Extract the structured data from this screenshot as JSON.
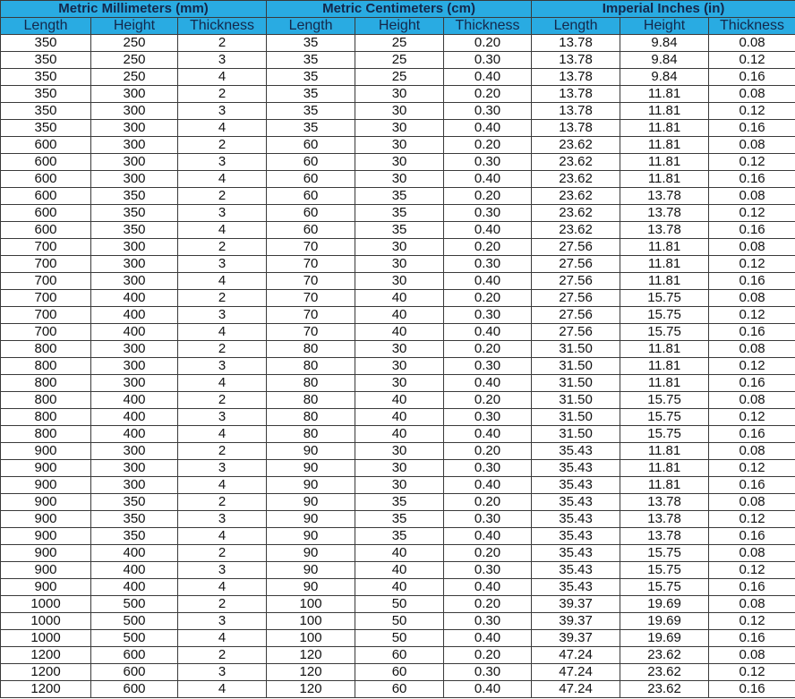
{
  "colors": {
    "header_bg": "#29abe2",
    "header_text": "#14284b",
    "border": "#3a3a3a"
  },
  "groups": [
    "Metric Millimeters (mm)",
    "Metric Centimeters (cm)",
    "Imperial Inches (in)"
  ],
  "columns": [
    "Length",
    "Height",
    "Thickness",
    "Length",
    "Height",
    "Thickness",
    "Length",
    "Height",
    "Thickness"
  ],
  "rows": [
    [
      "350",
      "250",
      "2",
      "35",
      "25",
      "0.20",
      "13.78",
      "9.84",
      "0.08"
    ],
    [
      "350",
      "250",
      "3",
      "35",
      "25",
      "0.30",
      "13.78",
      "9.84",
      "0.12"
    ],
    [
      "350",
      "250",
      "4",
      "35",
      "25",
      "0.40",
      "13.78",
      "9.84",
      "0.16"
    ],
    [
      "350",
      "300",
      "2",
      "35",
      "30",
      "0.20",
      "13.78",
      "11.81",
      "0.08"
    ],
    [
      "350",
      "300",
      "3",
      "35",
      "30",
      "0.30",
      "13.78",
      "11.81",
      "0.12"
    ],
    [
      "350",
      "300",
      "4",
      "35",
      "30",
      "0.40",
      "13.78",
      "11.81",
      "0.16"
    ],
    [
      "600",
      "300",
      "2",
      "60",
      "30",
      "0.20",
      "23.62",
      "11.81",
      "0.08"
    ],
    [
      "600",
      "300",
      "3",
      "60",
      "30",
      "0.30",
      "23.62",
      "11.81",
      "0.12"
    ],
    [
      "600",
      "300",
      "4",
      "60",
      "30",
      "0.40",
      "23.62",
      "11.81",
      "0.16"
    ],
    [
      "600",
      "350",
      "2",
      "60",
      "35",
      "0.20",
      "23.62",
      "13.78",
      "0.08"
    ],
    [
      "600",
      "350",
      "3",
      "60",
      "35",
      "0.30",
      "23.62",
      "13.78",
      "0.12"
    ],
    [
      "600",
      "350",
      "4",
      "60",
      "35",
      "0.40",
      "23.62",
      "13.78",
      "0.16"
    ],
    [
      "700",
      "300",
      "2",
      "70",
      "30",
      "0.20",
      "27.56",
      "11.81",
      "0.08"
    ],
    [
      "700",
      "300",
      "3",
      "70",
      "30",
      "0.30",
      "27.56",
      "11.81",
      "0.12"
    ],
    [
      "700",
      "300",
      "4",
      "70",
      "30",
      "0.40",
      "27.56",
      "11.81",
      "0.16"
    ],
    [
      "700",
      "400",
      "2",
      "70",
      "40",
      "0.20",
      "27.56",
      "15.75",
      "0.08"
    ],
    [
      "700",
      "400",
      "3",
      "70",
      "40",
      "0.30",
      "27.56",
      "15.75",
      "0.12"
    ],
    [
      "700",
      "400",
      "4",
      "70",
      "40",
      "0.40",
      "27.56",
      "15.75",
      "0.16"
    ],
    [
      "800",
      "300",
      "2",
      "80",
      "30",
      "0.20",
      "31.50",
      "11.81",
      "0.08"
    ],
    [
      "800",
      "300",
      "3",
      "80",
      "30",
      "0.30",
      "31.50",
      "11.81",
      "0.12"
    ],
    [
      "800",
      "300",
      "4",
      "80",
      "30",
      "0.40",
      "31.50",
      "11.81",
      "0.16"
    ],
    [
      "800",
      "400",
      "2",
      "80",
      "40",
      "0.20",
      "31.50",
      "15.75",
      "0.08"
    ],
    [
      "800",
      "400",
      "3",
      "80",
      "40",
      "0.30",
      "31.50",
      "15.75",
      "0.12"
    ],
    [
      "800",
      "400",
      "4",
      "80",
      "40",
      "0.40",
      "31.50",
      "15.75",
      "0.16"
    ],
    [
      "900",
      "300",
      "2",
      "90",
      "30",
      "0.20",
      "35.43",
      "11.81",
      "0.08"
    ],
    [
      "900",
      "300",
      "3",
      "90",
      "30",
      "0.30",
      "35.43",
      "11.81",
      "0.12"
    ],
    [
      "900",
      "300",
      "4",
      "90",
      "30",
      "0.40",
      "35.43",
      "11.81",
      "0.16"
    ],
    [
      "900",
      "350",
      "2",
      "90",
      "35",
      "0.20",
      "35.43",
      "13.78",
      "0.08"
    ],
    [
      "900",
      "350",
      "3",
      "90",
      "35",
      "0.30",
      "35.43",
      "13.78",
      "0.12"
    ],
    [
      "900",
      "350",
      "4",
      "90",
      "35",
      "0.40",
      "35.43",
      "13.78",
      "0.16"
    ],
    [
      "900",
      "400",
      "2",
      "90",
      "40",
      "0.20",
      "35.43",
      "15.75",
      "0.08"
    ],
    [
      "900",
      "400",
      "3",
      "90",
      "40",
      "0.30",
      "35.43",
      "15.75",
      "0.12"
    ],
    [
      "900",
      "400",
      "4",
      "90",
      "40",
      "0.40",
      "35.43",
      "15.75",
      "0.16"
    ],
    [
      "1000",
      "500",
      "2",
      "100",
      "50",
      "0.20",
      "39.37",
      "19.69",
      "0.08"
    ],
    [
      "1000",
      "500",
      "3",
      "100",
      "50",
      "0.30",
      "39.37",
      "19.69",
      "0.12"
    ],
    [
      "1000",
      "500",
      "4",
      "100",
      "50",
      "0.40",
      "39.37",
      "19.69",
      "0.16"
    ],
    [
      "1200",
      "600",
      "2",
      "120",
      "60",
      "0.20",
      "47.24",
      "23.62",
      "0.08"
    ],
    [
      "1200",
      "600",
      "3",
      "120",
      "60",
      "0.30",
      "47.24",
      "23.62",
      "0.12"
    ],
    [
      "1200",
      "600",
      "4",
      "120",
      "60",
      "0.40",
      "47.24",
      "23.62",
      "0.16"
    ]
  ]
}
